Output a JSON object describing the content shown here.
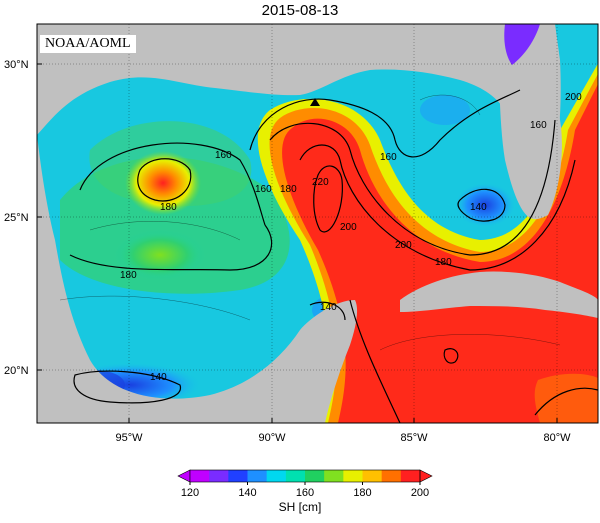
{
  "title": "2015-08-13",
  "credit": "NOAA/AOML",
  "axes": {
    "lat_ticks": [
      {
        "label": "30°N",
        "value": 30
      },
      {
        "label": "25°N",
        "value": 25
      },
      {
        "label": "20°N",
        "value": 20
      }
    ],
    "lon_ticks": [
      {
        "label": "95°W",
        "value": -95
      },
      {
        "label": "90°W",
        "value": -90
      },
      {
        "label": "85°W",
        "value": -85
      },
      {
        "label": "80°W",
        "value": -80
      }
    ],
    "lon_range": [
      -98,
      -78
    ],
    "lat_range": [
      18,
      31
    ]
  },
  "contour_labels": [
    {
      "text": "160"
    },
    {
      "text": "180"
    },
    {
      "text": "160"
    },
    {
      "text": "180"
    },
    {
      "text": "220"
    },
    {
      "text": "200"
    },
    {
      "text": "160"
    },
    {
      "text": "140"
    },
    {
      "text": "180"
    },
    {
      "text": "140"
    },
    {
      "text": "200"
    },
    {
      "text": "160"
    },
    {
      "text": "140"
    },
    {
      "text": "200"
    }
  ],
  "colorbar": {
    "label": "SH [cm]",
    "min": 120,
    "max": 200,
    "ticks": [
      "120",
      "140",
      "160",
      "180",
      "200"
    ],
    "colors": [
      "#c000ff",
      "#7a2cff",
      "#2040ff",
      "#1e90ff",
      "#00d8f0",
      "#00e0b0",
      "#20d060",
      "#80e020",
      "#e8f000",
      "#ffc000",
      "#ff7000",
      "#ff2020"
    ]
  },
  "map_colors": {
    "land": "#c0c0c0",
    "ocean_hot": "#ff2a1a",
    "ocean_warm": "#ff8c00",
    "ocean_mid": "#39d47a",
    "ocean_cool": "#18c0e8",
    "ocean_cold": "#1a40e0"
  },
  "marker": {
    "lon": -88.2,
    "lat": 28.7
  }
}
